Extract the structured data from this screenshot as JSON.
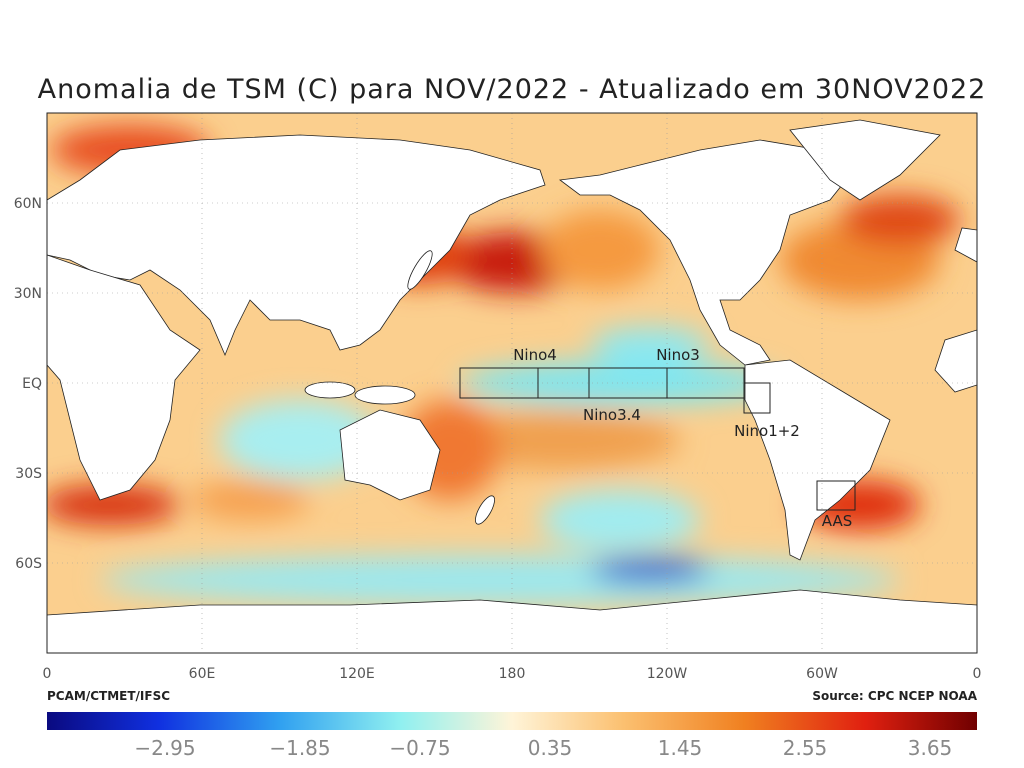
{
  "title": "Anomalia de TSM (C) para NOV/2022 - Atualizado em 30NOV2022",
  "map": {
    "lon_ticks": [
      "0",
      "60E",
      "120E",
      "180",
      "120W",
      "60W",
      "0"
    ],
    "lat_ticks": [
      "60N",
      "30N",
      "EQ",
      "30S",
      "60S"
    ],
    "regions": [
      "Nino4",
      "Nino3",
      "Nino3.4",
      "Nino1+2",
      "AAS"
    ]
  },
  "footer": {
    "left": "PCAM/CTMET/IFSC",
    "right": "Source: CPC NCEP NOAA"
  },
  "colorbar": {
    "labels": [
      "−2.95",
      "−1.85",
      "−0.75",
      "0.35",
      "1.45",
      "2.55",
      "3.65"
    ]
  }
}
